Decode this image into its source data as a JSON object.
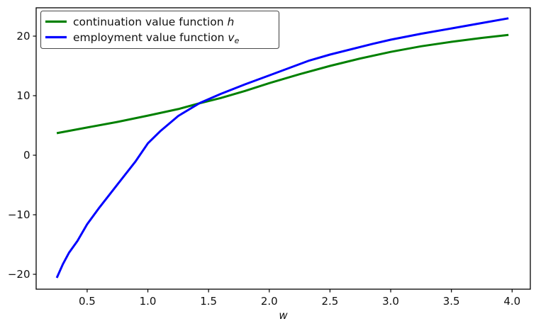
{
  "figure": {
    "background": "#ffffff"
  },
  "chart_data": {
    "type": "line",
    "title": "",
    "xlabel": "w",
    "ylabel": "",
    "grid": false,
    "legend_position": "upper left",
    "xlim": [
      0.08,
      4.15
    ],
    "ylim": [
      -22.5,
      24.76
    ],
    "x_ticks": [
      0.5,
      1.0,
      1.5,
      2.0,
      2.5,
      3.0,
      3.5,
      4.0
    ],
    "x_tick_labels": [
      "0.5",
      "1.0",
      "1.5",
      "2.0",
      "2.5",
      "3.0",
      "3.5",
      "4.0"
    ],
    "y_ticks": [
      -20,
      -10,
      0,
      10,
      20
    ],
    "y_tick_labels": [
      "−20",
      "−10",
      "0",
      "10",
      "20"
    ],
    "series": [
      {
        "name": "continuation value function h",
        "color": "#008000",
        "x": [
          0.25,
          0.5,
          0.75,
          1.0,
          1.25,
          1.43,
          1.6,
          1.8,
          2.0,
          2.25,
          2.5,
          2.75,
          3.0,
          3.25,
          3.5,
          3.75,
          3.97
        ],
        "y": [
          3.7,
          4.65,
          5.6,
          6.65,
          7.75,
          8.75,
          9.6,
          10.8,
          12.1,
          13.6,
          15.0,
          16.25,
          17.35,
          18.3,
          19.05,
          19.7,
          20.2
        ]
      },
      {
        "name": "employment value function v_e",
        "color": "#0000ff",
        "x": [
          0.25,
          0.3,
          0.35,
          0.42,
          0.5,
          0.6,
          0.75,
          0.9,
          1.0,
          1.1,
          1.25,
          1.43,
          1.6,
          1.8,
          2.0,
          2.33,
          2.5,
          2.85,
          3.0,
          3.25,
          3.5,
          3.75,
          3.97
        ],
        "y": [
          -20.6,
          -18.3,
          -16.4,
          -14.4,
          -11.6,
          -8.8,
          -4.9,
          -1.0,
          2.0,
          4.0,
          6.6,
          8.8,
          10.3,
          11.9,
          13.4,
          15.9,
          16.9,
          18.7,
          19.4,
          20.4,
          21.3,
          22.2,
          23.0
        ]
      }
    ],
    "legend": {
      "entries": [
        {
          "prefix": "continuation value function ",
          "symbol": "h",
          "subscript": "",
          "color": "#008000"
        },
        {
          "prefix": "employment value function ",
          "symbol": "v",
          "subscript": "e",
          "color": "#0000ff"
        }
      ]
    },
    "crossing_point": {
      "w": 1.43,
      "value": 8.8
    }
  }
}
